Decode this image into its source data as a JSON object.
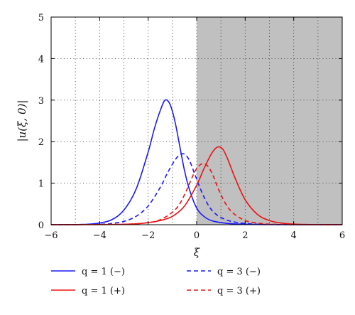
{
  "chart_data": {
    "type": "line",
    "xlabel": "ξ",
    "ylabel": "|u(ξ, 0)|",
    "xlim": [
      -6,
      6
    ],
    "ylim": [
      0,
      5
    ],
    "xticks": [
      "−6",
      "−4",
      "−2",
      "0",
      "2",
      "4",
      "6"
    ],
    "yticks": [
      "0",
      "1",
      "2",
      "3",
      "4",
      "5"
    ],
    "grid": true,
    "shaded_region": {
      "from": 0,
      "to": 6,
      "color": "#c0c0c0"
    },
    "legend_placement": "below",
    "series": [
      {
        "name": "q = 1 (−)",
        "color": "#1a1aff",
        "style": "solid",
        "x": [
          -6,
          -5,
          -4.5,
          -4,
          -3.5,
          -3,
          -2.5,
          -2,
          -1.75,
          -1.5,
          -1.3,
          -1.1,
          -0.9,
          -0.7,
          -0.5,
          -0.3,
          0,
          0.3,
          0.6,
          1,
          1.5,
          2,
          2.5,
          3,
          4,
          6
        ],
        "y": [
          0,
          0.002,
          0.01,
          0.04,
          0.12,
          0.35,
          0.85,
          1.75,
          2.3,
          2.75,
          3.0,
          2.9,
          2.5,
          1.9,
          1.3,
          0.85,
          0.4,
          0.2,
          0.1,
          0.05,
          0.02,
          0.01,
          0.005,
          0.002,
          0.0005,
          0
        ]
      },
      {
        "name": "q = 3 (−)",
        "color": "#1a1aff",
        "style": "dashed",
        "x": [
          -6,
          -4,
          -3.5,
          -3,
          -2.5,
          -2,
          -1.5,
          -1.2,
          -0.9,
          -0.7,
          -0.5,
          -0.3,
          -0.1,
          0.2,
          0.5,
          0.8,
          1.2,
          1.6,
          2,
          3,
          6
        ],
        "y": [
          0,
          0.01,
          0.03,
          0.08,
          0.2,
          0.45,
          0.9,
          1.25,
          1.55,
          1.68,
          1.7,
          1.55,
          1.25,
          0.8,
          0.45,
          0.25,
          0.12,
          0.06,
          0.03,
          0.005,
          0
        ]
      },
      {
        "name": "q = 1 (+)",
        "color": "#ee1111",
        "style": "solid",
        "x": [
          -6,
          -3,
          -2,
          -1.5,
          -1,
          -0.5,
          0,
          0.3,
          0.6,
          0.8,
          0.95,
          1.1,
          1.3,
          1.6,
          2,
          2.5,
          3,
          3.5,
          4,
          5,
          6
        ],
        "y": [
          0,
          0.01,
          0.05,
          0.1,
          0.2,
          0.45,
          0.95,
          1.35,
          1.7,
          1.85,
          1.87,
          1.8,
          1.55,
          1.1,
          0.6,
          0.25,
          0.1,
          0.04,
          0.015,
          0.002,
          0
        ]
      },
      {
        "name": "q = 3 (+)",
        "color": "#ee1111",
        "style": "dashed",
        "x": [
          -6,
          -3,
          -2,
          -1.5,
          -1,
          -0.7,
          -0.4,
          -0.1,
          0.1,
          0.3,
          0.5,
          0.7,
          0.9,
          1.2,
          1.5,
          2,
          2.5,
          3,
          4,
          6
        ],
        "y": [
          0,
          0.01,
          0.05,
          0.12,
          0.3,
          0.5,
          0.85,
          1.25,
          1.42,
          1.47,
          1.38,
          1.15,
          0.85,
          0.5,
          0.28,
          0.1,
          0.04,
          0.015,
          0.002,
          0
        ]
      }
    ],
    "legend": [
      {
        "label": "q = 1 (−)",
        "series": 0
      },
      {
        "label": "q = 3 (−)",
        "series": 1
      },
      {
        "label": "q = 1 (+)",
        "series": 2
      },
      {
        "label": "q = 3 (+)",
        "series": 3
      }
    ]
  }
}
